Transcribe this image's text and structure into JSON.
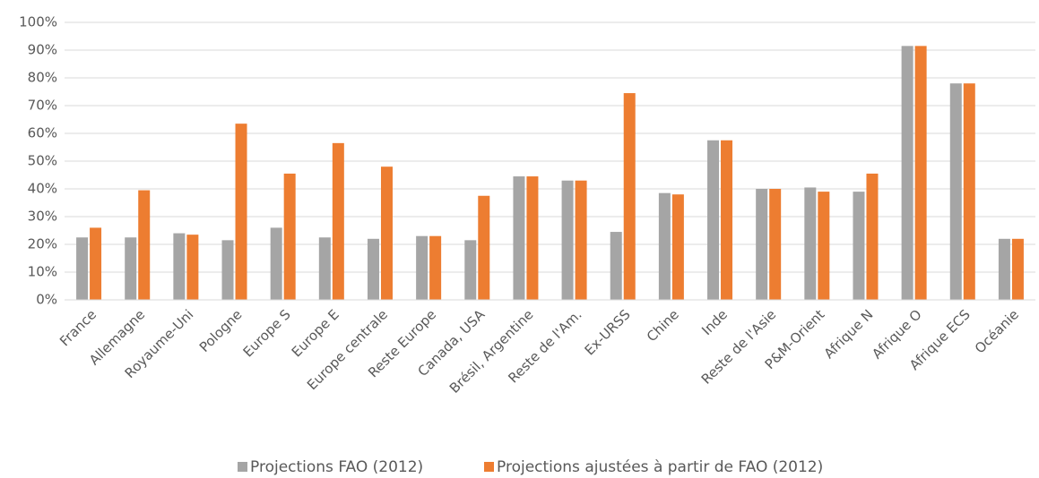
{
  "chart_data": {
    "type": "bar",
    "categories": [
      "France",
      "Allemagne",
      "Royaume-Uni",
      "Pologne",
      "Europe S",
      "Europe E",
      "Europe centrale",
      "Reste Europe",
      "Canada, USA",
      "Brésil, Argentine",
      "Reste de l'Am.",
      "Ex-URSS",
      "Chine",
      "Inde",
      "Reste de l'Asie",
      "P&M-Orient",
      "Afrique N",
      "Afrique O",
      "Afrique ECS",
      "Océanie"
    ],
    "series": [
      {
        "name": "Projections FAO (2012)",
        "color": "#a5a5a5",
        "values": [
          22.5,
          22.5,
          24,
          21.5,
          26,
          22.5,
          22,
          23,
          21.5,
          44.5,
          43,
          24.5,
          38.5,
          57.5,
          40,
          40.5,
          39,
          91.5,
          78,
          22
        ]
      },
      {
        "name": "Projections ajustées à partir de FAO (2012)",
        "color": "#ed7d31",
        "values": [
          26,
          39.5,
          23.5,
          63.5,
          45.5,
          56.5,
          48,
          23,
          37.5,
          44.5,
          43,
          74.5,
          38,
          57.5,
          40,
          39,
          45.5,
          91.5,
          78,
          22
        ]
      }
    ],
    "ylim": [
      0,
      100
    ],
    "yticks": [
      {
        "value": 0,
        "label": "0%"
      },
      {
        "value": 10,
        "label": "10%"
      },
      {
        "value": 20,
        "label": "20%"
      },
      {
        "value": 30,
        "label": "30%"
      },
      {
        "value": 40,
        "label": "40%"
      },
      {
        "value": 50,
        "label": "50%"
      },
      {
        "value": 60,
        "label": "60%"
      },
      {
        "value": 70,
        "label": "70%"
      },
      {
        "value": 80,
        "label": "80%"
      },
      {
        "value": 90,
        "label": "90%"
      },
      {
        "value": 100,
        "label": "100%"
      }
    ],
    "grid": true,
    "legend": "bottom"
  }
}
